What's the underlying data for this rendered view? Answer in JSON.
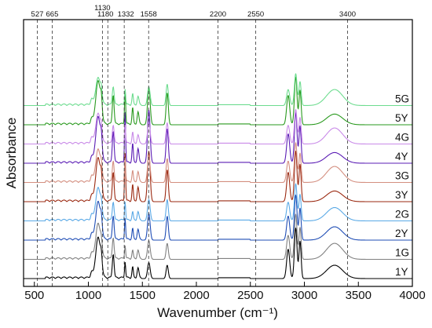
{
  "chart_data": {
    "type": "line",
    "xlabel": "Wavenumber (cm⁻¹)",
    "ylabel": "Absorbance",
    "xlim": [
      400,
      4000
    ],
    "x_ticks": [
      "500",
      "1000",
      "1500",
      "2000",
      "2500",
      "3000",
      "3500",
      "4000"
    ],
    "y_ticks_shown": false,
    "grid": false,
    "markers": [
      "527",
      "665",
      "1130",
      "1180",
      "1332",
      "1558",
      "2200",
      "2550",
      "3400"
    ],
    "marker_values": [
      527,
      665,
      1130,
      1180,
      1332,
      1558,
      2200,
      2550,
      3400
    ],
    "peak_positions": [
      1030,
      1090,
      1120,
      1230,
      1340,
      1410,
      1460,
      1560,
      1730,
      2850,
      2920,
      2960,
      3280
    ],
    "series": [
      {
        "name": "1Y",
        "color": "#000000",
        "peaks": [
          0.1,
          0.75,
          0.25,
          0.45,
          0.3,
          0.2,
          0.18,
          0.3,
          0.25,
          0.55,
          0.95,
          0.7,
          0.25
        ]
      },
      {
        "name": "1G",
        "color": "#808080",
        "peaks": [
          0.1,
          0.65,
          0.2,
          0.4,
          0.25,
          0.15,
          0.15,
          0.35,
          0.3,
          0.45,
          0.85,
          0.6,
          0.3
        ]
      },
      {
        "name": "2Y",
        "color": "#1f4db5",
        "peaks": [
          0.1,
          0.7,
          0.25,
          0.45,
          0.4,
          0.2,
          0.18,
          0.5,
          0.45,
          0.45,
          0.85,
          0.6,
          0.25
        ]
      },
      {
        "name": "2G",
        "color": "#5aa9e6",
        "peaks": [
          0.1,
          0.6,
          0.2,
          0.35,
          0.35,
          0.15,
          0.15,
          0.4,
          0.4,
          0.35,
          0.7,
          0.5,
          0.25
        ]
      },
      {
        "name": "3Y",
        "color": "#9b2a12",
        "peaks": [
          0.1,
          0.8,
          0.3,
          0.55,
          0.9,
          0.3,
          0.25,
          0.95,
          0.6,
          0.55,
          0.95,
          0.7,
          0.2
        ]
      },
      {
        "name": "3G",
        "color": "#d48f80",
        "peaks": [
          0.1,
          0.6,
          0.2,
          0.4,
          0.45,
          0.2,
          0.18,
          0.5,
          0.45,
          0.4,
          0.75,
          0.55,
          0.3
        ]
      },
      {
        "name": "4Y",
        "color": "#5b1db5",
        "peaks": [
          0.1,
          0.85,
          0.3,
          0.6,
          0.95,
          0.35,
          0.25,
          1.0,
          0.65,
          0.55,
          0.95,
          0.7,
          0.2
        ]
      },
      {
        "name": "4G",
        "color": "#c98ae8",
        "peaks": [
          0.1,
          0.55,
          0.2,
          0.35,
          0.35,
          0.2,
          0.15,
          0.4,
          0.4,
          0.35,
          0.65,
          0.5,
          0.3
        ]
      },
      {
        "name": "5Y",
        "color": "#2a9a1f",
        "peaks": [
          0.1,
          0.8,
          0.3,
          0.55,
          0.65,
          0.3,
          0.22,
          0.7,
          0.6,
          0.55,
          0.9,
          0.65,
          0.2
        ]
      },
      {
        "name": "5G",
        "color": "#6ddc8f",
        "peaks": [
          0.1,
          0.5,
          0.2,
          0.35,
          0.3,
          0.2,
          0.15,
          0.35,
          0.4,
          0.3,
          0.6,
          0.45,
          0.3
        ]
      }
    ]
  }
}
